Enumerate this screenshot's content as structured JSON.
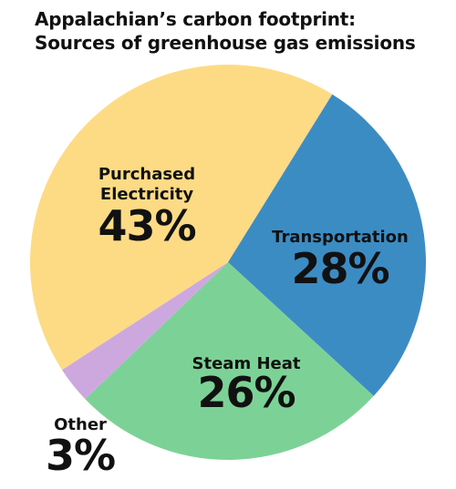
{
  "chart_data": {
    "type": "pie",
    "title_lines": [
      "Appalachian’s carbon footprint:",
      "Sources of greenhouse gas emissions"
    ],
    "slices": [
      {
        "label": "Purchased Electricity",
        "label_lines": [
          "Purchased",
          "Electricity"
        ],
        "value": 43,
        "value_label": "43%",
        "color": "#FDDB85"
      },
      {
        "label": "Transportation",
        "label_lines": [
          "Transportation"
        ],
        "value": 28,
        "value_label": "28%",
        "color": "#3C8CC4"
      },
      {
        "label": "Steam Heat",
        "label_lines": [
          "Steam Heat"
        ],
        "value": 26,
        "value_label": "26%",
        "color": "#7CD296"
      },
      {
        "label": "Other",
        "label_lines": [
          "Other"
        ],
        "value": 3,
        "value_label": "3%",
        "color": "#CDA8DF"
      }
    ],
    "legend": "none"
  }
}
